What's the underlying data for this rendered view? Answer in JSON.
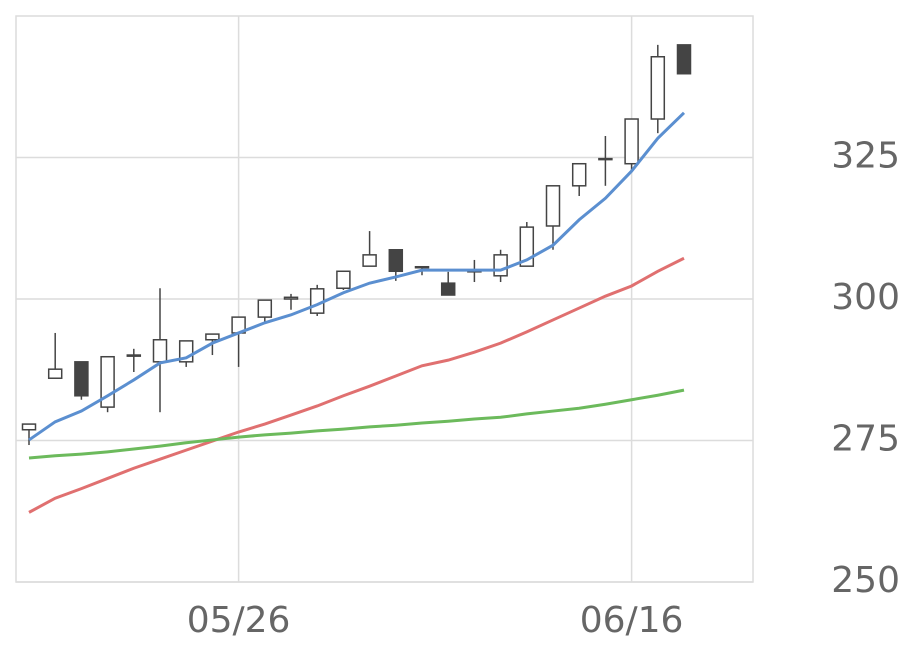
{
  "chart_data": {
    "type": "candlestick",
    "categories": [
      null,
      null,
      null,
      null,
      null,
      null,
      null,
      null,
      "05/26",
      null,
      null,
      null,
      null,
      null,
      null,
      null,
      null,
      null,
      null,
      null,
      null,
      null,
      null,
      "06/16",
      null,
      null
    ],
    "open": [
      276.9,
      286.0,
      288.9,
      280.9,
      289.9,
      288.9,
      288.9,
      292.8,
      294.0,
      296.8,
      300.0,
      297.5,
      301.9,
      305.8,
      308.7,
      305.7,
      302.8,
      304.8,
      304.1,
      305.8,
      312.9,
      320.0,
      324.7,
      323.9,
      331.8,
      344.9
    ],
    "high": [
      277.9,
      294.0,
      288.9,
      289.8,
      291.2,
      301.9,
      292.6,
      293.8,
      296.8,
      299.8,
      300.9,
      302.5,
      304.9,
      312.0,
      308.7,
      305.8,
      304.8,
      306.9,
      308.7,
      313.6,
      320.0,
      323.9,
      328.8,
      331.8,
      344.9,
      344.9
    ],
    "low": [
      274.2,
      286.0,
      282.2,
      280.0,
      287.1,
      280.0,
      288.0,
      290.1,
      288.0,
      295.8,
      298.1,
      297.0,
      301.6,
      305.8,
      303.2,
      304.2,
      300.7,
      303.0,
      303.0,
      305.8,
      308.7,
      318.2,
      320.0,
      322.8,
      329.3,
      339.8
    ],
    "close": [
      277.9,
      287.6,
      282.9,
      289.8,
      290.1,
      292.8,
      292.6,
      293.8,
      296.8,
      299.8,
      300.3,
      301.8,
      304.9,
      307.8,
      304.9,
      305.6,
      300.7,
      305.0,
      307.8,
      312.7,
      320.0,
      323.9,
      324.8,
      331.8,
      342.8,
      339.8
    ],
    "up_color": "#ffffff",
    "down_color": "#444444",
    "wick_color": "#444444",
    "series": [
      {
        "color": "#5b8fd0",
        "values": [
          275.1,
          278.3,
          280.2,
          282.9,
          285.7,
          288.7,
          289.6,
          292.2,
          294.0,
          295.8,
          297.2,
          299.0,
          301.1,
          302.8,
          303.9,
          305.1,
          305.1,
          305.1,
          305.1,
          306.9,
          309.5,
          314.0,
          317.8,
          322.6,
          328.4,
          332.9
        ]
      },
      {
        "color": "#e07070",
        "values": [
          262.3,
          264.8,
          266.5,
          268.3,
          270.1,
          271.7,
          273.3,
          274.9,
          276.5,
          277.9,
          279.5,
          281.1,
          282.9,
          284.6,
          286.4,
          288.2,
          289.2,
          290.6,
          292.2,
          294.2,
          296.3,
          298.4,
          300.5,
          302.3,
          304.9,
          307.2
        ]
      },
      {
        "color": "#6cba5c",
        "values": [
          271.9,
          272.3,
          272.6,
          273.0,
          273.5,
          274.0,
          274.6,
          275.1,
          275.6,
          276.0,
          276.3,
          276.7,
          277.0,
          277.4,
          277.7,
          278.1,
          278.4,
          278.8,
          279.1,
          279.7,
          280.2,
          280.7,
          281.4,
          282.2,
          283.0,
          283.9
        ]
      }
    ],
    "ylim": [
      250,
      350
    ],
    "yticks": [
      250,
      275,
      300,
      325
    ],
    "grid": true
  }
}
